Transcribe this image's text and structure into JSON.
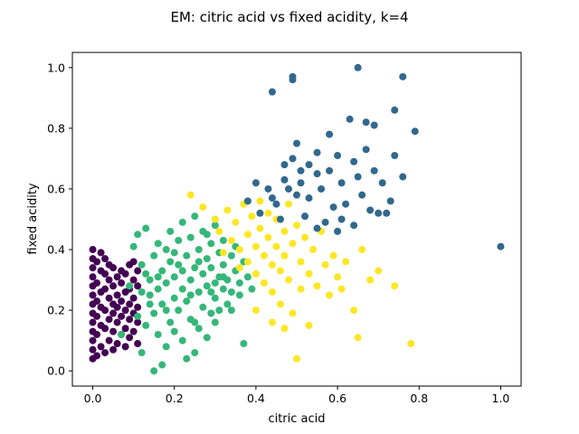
{
  "chart_data": {
    "type": "scatter",
    "title": "EM: citric acid vs fixed acidity, k=4",
    "xlabel": "citric acid",
    "ylabel": "fixed acidity",
    "xlim": [
      -0.05,
      1.05
    ],
    "ylim": [
      -0.05,
      1.05
    ],
    "xticks": [
      0.0,
      0.2,
      0.4,
      0.6,
      0.8,
      1.0
    ],
    "xtick_labels": [
      "0.0",
      "0.2",
      "0.4",
      "0.6",
      "0.8",
      "1.0"
    ],
    "yticks": [
      0.0,
      0.2,
      0.4,
      0.6,
      0.8,
      1.0
    ],
    "ytick_labels": [
      "0.0",
      "0.2",
      "0.4",
      "0.6",
      "0.8",
      "1.0"
    ],
    "grid": false,
    "legend": false,
    "series": [
      {
        "color": "#440154",
        "points": [
          [
            0.0,
            0.04
          ],
          [
            0.0,
            0.07
          ],
          [
            0.0,
            0.1
          ],
          [
            0.0,
            0.13
          ],
          [
            0.0,
            0.16
          ],
          [
            0.0,
            0.19
          ],
          [
            0.0,
            0.22
          ],
          [
            0.0,
            0.25
          ],
          [
            0.0,
            0.28
          ],
          [
            0.0,
            0.31
          ],
          [
            0.0,
            0.34
          ],
          [
            0.0,
            0.37
          ],
          [
            0.0,
            0.4
          ],
          [
            0.01,
            0.05
          ],
          [
            0.01,
            0.12
          ],
          [
            0.01,
            0.18
          ],
          [
            0.01,
            0.23
          ],
          [
            0.01,
            0.29
          ],
          [
            0.01,
            0.36
          ],
          [
            0.02,
            0.08
          ],
          [
            0.02,
            0.15
          ],
          [
            0.02,
            0.21
          ],
          [
            0.02,
            0.26
          ],
          [
            0.02,
            0.33
          ],
          [
            0.02,
            0.39
          ],
          [
            0.03,
            0.06
          ],
          [
            0.03,
            0.14
          ],
          [
            0.03,
            0.2
          ],
          [
            0.03,
            0.27
          ],
          [
            0.03,
            0.32
          ],
          [
            0.03,
            0.37
          ],
          [
            0.04,
            0.1
          ],
          [
            0.04,
            0.17
          ],
          [
            0.04,
            0.24
          ],
          [
            0.04,
            0.3
          ],
          [
            0.04,
            0.35
          ],
          [
            0.05,
            0.07
          ],
          [
            0.05,
            0.13
          ],
          [
            0.05,
            0.19
          ],
          [
            0.05,
            0.22
          ],
          [
            0.05,
            0.28
          ],
          [
            0.05,
            0.34
          ],
          [
            0.06,
            0.09
          ],
          [
            0.06,
            0.16
          ],
          [
            0.06,
            0.21
          ],
          [
            0.06,
            0.25
          ],
          [
            0.06,
            0.31
          ],
          [
            0.07,
            0.12
          ],
          [
            0.07,
            0.18
          ],
          [
            0.07,
            0.23
          ],
          [
            0.07,
            0.29
          ],
          [
            0.07,
            0.33
          ],
          [
            0.08,
            0.08
          ],
          [
            0.08,
            0.14
          ],
          [
            0.08,
            0.2
          ],
          [
            0.08,
            0.26
          ],
          [
            0.08,
            0.32
          ],
          [
            0.09,
            0.11
          ],
          [
            0.09,
            0.17
          ],
          [
            0.09,
            0.22
          ],
          [
            0.09,
            0.27
          ],
          [
            0.09,
            0.35
          ],
          [
            0.1,
            0.13
          ],
          [
            0.1,
            0.19
          ],
          [
            0.1,
            0.24
          ],
          [
            0.1,
            0.3
          ],
          [
            0.1,
            0.36
          ],
          [
            0.11,
            0.09
          ],
          [
            0.11,
            0.16
          ],
          [
            0.11,
            0.21
          ],
          [
            0.11,
            0.28
          ],
          [
            0.11,
            0.33
          ]
        ]
      },
      {
        "color": "#35b779",
        "points": [
          [
            0.07,
            0.12
          ],
          [
            0.09,
            0.28
          ],
          [
            0.1,
            0.41
          ],
          [
            0.11,
            0.45
          ],
          [
            0.11,
            0.18
          ],
          [
            0.12,
            0.06
          ],
          [
            0.12,
            0.26
          ],
          [
            0.12,
            0.35
          ],
          [
            0.13,
            0.47
          ],
          [
            0.13,
            0.15
          ],
          [
            0.14,
            0.22
          ],
          [
            0.14,
            0.3
          ],
          [
            0.15,
            0.0
          ],
          [
            0.15,
            0.38
          ],
          [
            0.15,
            0.19
          ],
          [
            0.16,
            0.12
          ],
          [
            0.16,
            0.27
          ],
          [
            0.16,
            0.42
          ],
          [
            0.17,
            0.02
          ],
          [
            0.17,
            0.33
          ],
          [
            0.17,
            0.22
          ],
          [
            0.18,
            0.08
          ],
          [
            0.18,
            0.4
          ],
          [
            0.18,
            0.29
          ],
          [
            0.19,
            0.16
          ],
          [
            0.19,
            0.36
          ],
          [
            0.19,
            0.46
          ],
          [
            0.2,
            0.24
          ],
          [
            0.2,
            0.31
          ],
          [
            0.2,
            0.13
          ],
          [
            0.21,
            0.43
          ],
          [
            0.21,
            0.2
          ],
          [
            0.21,
            0.35
          ],
          [
            0.22,
            0.27
          ],
          [
            0.22,
            0.49
          ],
          [
            0.22,
            0.1
          ],
          [
            0.23,
            0.38
          ],
          [
            0.23,
            0.04
          ],
          [
            0.23,
            0.23
          ],
          [
            0.24,
            0.3
          ],
          [
            0.24,
            0.44
          ],
          [
            0.24,
            0.17
          ],
          [
            0.25,
            0.34
          ],
          [
            0.25,
            0.51
          ],
          [
            0.25,
            0.06
          ],
          [
            0.26,
            0.26
          ],
          [
            0.26,
            0.4
          ],
          [
            0.26,
            0.14
          ],
          [
            0.27,
            0.21
          ],
          [
            0.27,
            0.46
          ],
          [
            0.27,
            0.32
          ],
          [
            0.28,
            0.37
          ],
          [
            0.28,
            0.28
          ],
          [
            0.28,
            0.11
          ],
          [
            0.29,
            0.42
          ],
          [
            0.29,
            0.19
          ],
          [
            0.29,
            0.34
          ],
          [
            0.3,
            0.24
          ],
          [
            0.3,
            0.48
          ],
          [
            0.3,
            0.16
          ],
          [
            0.31,
            0.31
          ],
          [
            0.31,
            0.39
          ],
          [
            0.31,
            0.2
          ],
          [
            0.32,
            0.27
          ],
          [
            0.32,
            0.43
          ],
          [
            0.32,
            0.35
          ],
          [
            0.33,
            0.22
          ],
          [
            0.33,
            0.3
          ],
          [
            0.34,
            0.38
          ],
          [
            0.34,
            0.26
          ],
          [
            0.35,
            0.33
          ],
          [
            0.35,
            0.41
          ],
          [
            0.36,
            0.29
          ],
          [
            0.37,
            0.36
          ],
          [
            0.37,
            0.09
          ],
          [
            0.38,
            0.31
          ],
          [
            0.39,
            0.27
          ],
          [
            0.14,
            0.25
          ],
          [
            0.18,
            0.2
          ],
          [
            0.22,
            0.33
          ],
          [
            0.26,
            0.36
          ],
          [
            0.2,
            0.39
          ],
          [
            0.16,
            0.31
          ],
          [
            0.24,
            0.25
          ],
          [
            0.28,
            0.45
          ],
          [
            0.3,
            0.29
          ],
          [
            0.32,
            0.31
          ],
          [
            0.34,
            0.2
          ],
          [
            0.36,
            0.25
          ],
          [
            0.13,
            0.32
          ],
          [
            0.25,
            0.16
          ],
          [
            0.29,
            0.26
          ]
        ]
      },
      {
        "color": "#fde725",
        "points": [
          [
            0.24,
            0.58
          ],
          [
            0.27,
            0.54
          ],
          [
            0.3,
            0.5
          ],
          [
            0.31,
            0.46
          ],
          [
            0.33,
            0.53
          ],
          [
            0.34,
            0.43
          ],
          [
            0.35,
            0.49
          ],
          [
            0.36,
            0.4
          ],
          [
            0.37,
            0.55
          ],
          [
            0.38,
            0.45
          ],
          [
            0.38,
            0.36
          ],
          [
            0.39,
            0.51
          ],
          [
            0.4,
            0.41
          ],
          [
            0.4,
            0.32
          ],
          [
            0.41,
            0.47
          ],
          [
            0.41,
            0.56
          ],
          [
            0.42,
            0.38
          ],
          [
            0.42,
            0.29
          ],
          [
            0.43,
            0.44
          ],
          [
            0.43,
            0.52
          ],
          [
            0.44,
            0.35
          ],
          [
            0.44,
            0.26
          ],
          [
            0.45,
            0.41
          ],
          [
            0.45,
            0.5
          ],
          [
            0.46,
            0.33
          ],
          [
            0.46,
            0.22
          ],
          [
            0.47,
            0.46
          ],
          [
            0.47,
            0.38
          ],
          [
            0.48,
            0.3
          ],
          [
            0.48,
            0.55
          ],
          [
            0.49,
            0.42
          ],
          [
            0.49,
            0.19
          ],
          [
            0.5,
            0.48
          ],
          [
            0.5,
            0.04
          ],
          [
            0.51,
            0.36
          ],
          [
            0.51,
            0.27
          ],
          [
            0.52,
            0.44
          ],
          [
            0.53,
            0.32
          ],
          [
            0.53,
            0.15
          ],
          [
            0.54,
            0.4
          ],
          [
            0.55,
            0.28
          ],
          [
            0.56,
            0.46
          ],
          [
            0.57,
            0.35
          ],
          [
            0.58,
            0.25
          ],
          [
            0.59,
            0.38
          ],
          [
            0.6,
            0.31
          ],
          [
            0.61,
            0.27
          ],
          [
            0.62,
            0.36
          ],
          [
            0.64,
            0.2
          ],
          [
            0.65,
            0.11
          ],
          [
            0.66,
            0.4
          ],
          [
            0.68,
            0.3
          ],
          [
            0.7,
            0.33
          ],
          [
            0.74,
            0.28
          ],
          [
            0.78,
            0.09
          ],
          [
            0.44,
            0.16
          ],
          [
            0.4,
            0.2
          ],
          [
            0.36,
            0.34
          ],
          [
            0.32,
            0.39
          ],
          [
            0.47,
            0.14
          ]
        ]
      },
      {
        "color": "#31688e",
        "points": [
          [
            0.44,
            0.92
          ],
          [
            0.49,
            0.96
          ],
          [
            0.49,
            0.97
          ],
          [
            0.65,
            1.0
          ],
          [
            0.76,
            0.97
          ],
          [
            0.63,
            0.83
          ],
          [
            0.74,
            0.86
          ],
          [
            0.67,
            0.82
          ],
          [
            0.79,
            0.79
          ],
          [
            0.69,
            0.81
          ],
          [
            0.58,
            0.78
          ],
          [
            0.67,
            0.73
          ],
          [
            0.6,
            0.71
          ],
          [
            0.53,
            0.68
          ],
          [
            0.74,
            0.71
          ],
          [
            0.49,
            0.7
          ],
          [
            0.51,
            0.66
          ],
          [
            0.55,
            0.65
          ],
          [
            0.61,
            0.62
          ],
          [
            0.65,
            0.64
          ],
          [
            0.71,
            0.62
          ],
          [
            0.76,
            0.64
          ],
          [
            0.47,
            0.63
          ],
          [
            0.43,
            0.6
          ],
          [
            0.45,
            0.55
          ],
          [
            0.5,
            0.58
          ],
          [
            0.53,
            0.57
          ],
          [
            0.56,
            0.6
          ],
          [
            0.59,
            0.54
          ],
          [
            0.62,
            0.55
          ],
          [
            0.66,
            0.58
          ],
          [
            0.7,
            0.52
          ],
          [
            0.73,
            0.56
          ],
          [
            0.41,
            0.52
          ],
          [
            0.46,
            0.5
          ],
          [
            0.52,
            0.51
          ],
          [
            0.57,
            0.49
          ],
          [
            0.61,
            0.5
          ],
          [
            0.64,
            0.48
          ],
          [
            0.68,
            0.53
          ],
          [
            0.72,
            0.52
          ],
          [
            0.4,
            0.62
          ],
          [
            0.38,
            0.56
          ],
          [
            0.55,
            0.72
          ],
          [
            0.5,
            0.75
          ],
          [
            0.47,
            0.68
          ],
          [
            0.58,
            0.66
          ],
          [
            0.64,
            0.69
          ],
          [
            0.69,
            0.66
          ],
          [
            1.0,
            0.41
          ],
          [
            0.6,
            0.46
          ],
          [
            0.55,
            0.47
          ],
          [
            0.48,
            0.6
          ],
          [
            0.44,
            0.57
          ],
          [
            0.51,
            0.62
          ]
        ]
      }
    ]
  }
}
